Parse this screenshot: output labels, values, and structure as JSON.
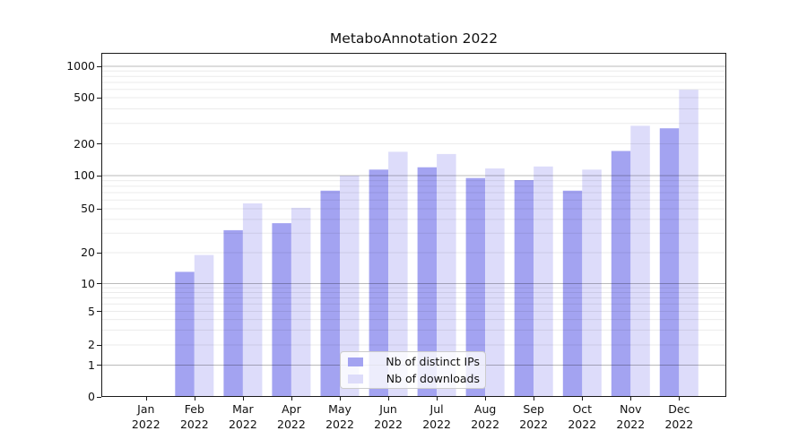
{
  "chart_data": {
    "type": "bar",
    "title": "MetaboAnnotation 2022",
    "categories": [
      "Jan 2022",
      "Feb 2022",
      "Mar 2022",
      "Apr 2022",
      "May 2022",
      "Jun 2022",
      "Jul 2022",
      "Aug 2022",
      "Sep 2022",
      "Oct 2022",
      "Nov 2022",
      "Dec 2022"
    ],
    "series": [
      {
        "name": "Nb of distinct IPs",
        "color": "#a3a3f1",
        "values": [
          0,
          13,
          32,
          37,
          73,
          114,
          120,
          95,
          91,
          73,
          171,
          272
        ]
      },
      {
        "name": "Nb of downloads",
        "color": "#dddcfa",
        "values": [
          0,
          19,
          56,
          51,
          100,
          168,
          160,
          117,
          122,
          114,
          286,
          595
        ]
      }
    ],
    "xlabel": "",
    "ylabel": "",
    "yscale": "symlog",
    "yticks": [
      0,
      1,
      2,
      5,
      10,
      20,
      50,
      100,
      200,
      500,
      1000
    ],
    "ylim": [
      0,
      1300
    ],
    "grid": "both",
    "legend_position": "lower-center"
  },
  "colors": {
    "axis": "#1a1a1a",
    "grid_major": "#bdbdbd",
    "grid_minor": "#ebebeb",
    "background": "#ffffff"
  }
}
